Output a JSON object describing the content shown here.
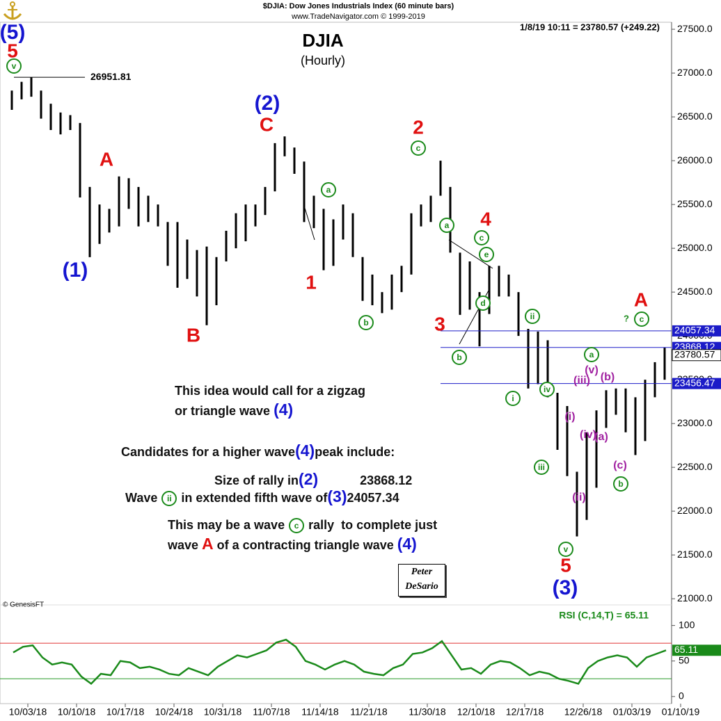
{
  "header": {
    "source": "$DJIA: Dow Jones Industrials Index  (60 minute bars)",
    "site": "www.TradeNavigator.com © 1999-2019",
    "quote": "1/8/19 10:11 = 23780.57 (+249.22)",
    "copyright": "© GenesisFT",
    "signature": [
      "Peter",
      "DeSario"
    ]
  },
  "chart_data": [
    {
      "type": "range-bar",
      "title": "DJIA",
      "subtitle": "(Hourly)",
      "categories": [
        null,
        null,
        "10/03/18",
        null,
        null,
        null,
        null,
        "10/10/18",
        null,
        null,
        null,
        null,
        "10/17/18",
        null,
        null,
        null,
        null,
        "10/24/18",
        null,
        null,
        null,
        null,
        "10/31/18",
        null,
        null,
        null,
        null,
        "11/07/18",
        null,
        null,
        null,
        null,
        "11/14/18",
        null,
        null,
        null,
        null,
        "11/21/18",
        null,
        null,
        null,
        null,
        null,
        "11/30/18",
        null,
        null,
        null,
        null,
        "12/10/18",
        null,
        null,
        null,
        null,
        "12/17/18",
        null,
        null,
        null,
        null,
        null,
        "12/26/18",
        null,
        null,
        null,
        null,
        "01/03/19",
        null,
        null,
        null,
        null,
        "01/10/19"
      ],
      "high": [
        26800,
        26900,
        26952,
        26800,
        26650,
        26550,
        26520,
        26430,
        25700,
        25500,
        25450,
        25820,
        25800,
        25700,
        25600,
        25500,
        25300,
        25300,
        25100,
        24980,
        25020,
        24900,
        25200,
        25400,
        25500,
        25500,
        25700,
        26200,
        26277,
        26150,
        25990,
        25600,
        25450,
        25330,
        25500,
        25400,
        24900,
        24700,
        24500,
        24700,
        24800,
        25400,
        25500,
        25600,
        26000,
        25700,
        24950,
        24850,
        24500,
        24800,
        24800,
        24700,
        24500,
        24080,
        24050,
        23950,
        23350,
        23200,
        22450,
        22900,
        23150,
        23380,
        23400,
        23400,
        23300,
        23500,
        23700,
        23868,
        null,
        null
      ],
      "low": [
        26580,
        26700,
        26730,
        26480,
        26350,
        26300,
        26350,
        25580,
        24899,
        25050,
        25180,
        25250,
        25450,
        25250,
        25300,
        25250,
        24800,
        24550,
        24650,
        24450,
        24122,
        24350,
        24850,
        25000,
        25080,
        25250,
        25380,
        25650,
        26050,
        25850,
        25300,
        25230,
        24750,
        24800,
        25100,
        24900,
        24400,
        24350,
        24260,
        24300,
        24500,
        24700,
        25250,
        25300,
        25600,
        24950,
        24240,
        24300,
        23881,
        24250,
        24450,
        24450,
        24000,
        23400,
        23450,
        23300,
        22700,
        22400,
        21712,
        21900,
        22267,
        22950,
        23100,
        22900,
        22640,
        22800,
        23300,
        23500,
        null,
        null
      ],
      "color": "#000000",
      "ylim": [
        20930,
        27580
      ],
      "yticks": [
        {
          "value": 21000,
          "label": "21000.0"
        },
        {
          "value": 21500,
          "label": "21500.0"
        },
        {
          "value": 22000,
          "label": "22000.0"
        },
        {
          "value": 22500,
          "label": "22500.0"
        },
        {
          "value": 23000,
          "label": "23000.0"
        },
        {
          "value": 23500,
          "label": "23500.0"
        },
        {
          "value": 24000,
          "label": "24000.0"
        },
        {
          "value": 24500,
          "label": "24500.0"
        },
        {
          "value": 25000,
          "label": "25000.0"
        },
        {
          "value": 25500,
          "label": "25500.0"
        },
        {
          "value": 26000,
          "label": "26000.0"
        },
        {
          "value": 26500,
          "label": "26500.0"
        },
        {
          "value": 27000,
          "label": "27000.0"
        },
        {
          "value": 27500,
          "label": "27500.0"
        }
      ],
      "last": 23780.57,
      "peak": 26951.81,
      "levels": [
        24057.34,
        23868.12,
        23456.47
      ],
      "level_color": "#1c1cc8"
    },
    {
      "type": "line",
      "label": "RSI (C,14,T) = 65.11",
      "values": [
        62,
        70,
        72,
        55,
        45,
        48,
        45,
        28,
        18,
        32,
        30,
        50,
        48,
        40,
        42,
        38,
        32,
        30,
        40,
        35,
        30,
        42,
        50,
        58,
        55,
        60,
        65,
        76,
        80,
        70,
        50,
        45,
        38,
        45,
        50,
        45,
        35,
        32,
        30,
        40,
        45,
        60,
        62,
        68,
        78,
        58,
        38,
        40,
        32,
        45,
        50,
        48,
        40,
        30,
        35,
        32,
        25,
        22,
        18,
        40,
        50,
        55,
        58,
        55,
        42,
        55,
        60,
        65.11,
        null,
        null
      ],
      "color": "#1a8a1a",
      "ylim": [
        -10,
        129
      ],
      "yticks": [
        0,
        50,
        100
      ],
      "ref_lines": [
        {
          "value": 75,
          "color": "#e03030"
        },
        {
          "value": 25,
          "color": "#2a9a2a"
        }
      ]
    }
  ],
  "waves": {
    "blue": [
      "(5)",
      "(1)",
      "(2)",
      "(3)"
    ],
    "red": [
      "5",
      "A",
      "C",
      "B",
      "1",
      "2",
      "3",
      "4",
      "5",
      "A"
    ],
    "green": [
      "v",
      "a",
      "b",
      "c",
      "a",
      "c",
      "e",
      "d",
      "b",
      "ii",
      "i",
      "iv",
      "iii",
      "v",
      "a",
      "b",
      "c"
    ],
    "question": "?",
    "purple": [
      "(v)",
      "(iii)",
      "(b)",
      "(i)",
      "(iv)",
      "(a)",
      "(ii)",
      "(c)"
    ]
  },
  "notes": [
    [
      "This idea would call for a zigzag"
    ],
    [
      "or triangle wave ",
      {
        "text": "(4)",
        "color": "#1515d0"
      }
    ],
    [
      "Candidates for a higher wave",
      {
        "text": "(4)",
        "color": "#1515d0"
      },
      "peak include:"
    ],
    [
      "Size of rally in",
      {
        "text": "(2)",
        "color": "#1515d0"
      },
      "23868.12"
    ],
    [
      "Wave ",
      {
        "text": "ii",
        "circled": true
      },
      " in extended fifth wave of",
      {
        "text": "(3)",
        "color": "#1515d0"
      },
      "24057.34"
    ],
    [
      "This may be a wave ",
      {
        "text": "c",
        "circled": true
      },
      " rally  to complete just"
    ],
    [
      "wave ",
      {
        "text": "A",
        "color": "#e01010"
      },
      " of a contracting triangle wave ",
      {
        "text": "(4)",
        "color": "#1515d0"
      }
    ]
  ]
}
